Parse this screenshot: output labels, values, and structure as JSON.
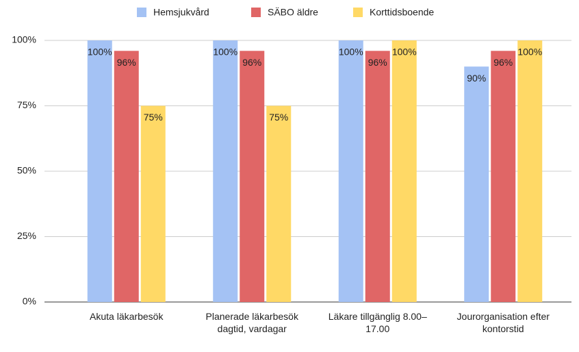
{
  "chart_data": {
    "type": "bar",
    "categories": [
      "Akuta läkarbesök",
      "Planerade läkarbesök dagtid, vardagar",
      "Läkare tillgänglig 8.00–17.00",
      "Jourorganisation efter kontorstid"
    ],
    "series": [
      {
        "name": "Hemsjukvård",
        "color": "#a4c2f4",
        "values": [
          100,
          100,
          100,
          90
        ],
        "value_labels": [
          "100%",
          "100%",
          "100%",
          "90%"
        ]
      },
      {
        "name": "SÄBO äldre",
        "color": "#e06666",
        "values": [
          96,
          96,
          96,
          96
        ],
        "value_labels": [
          "96%",
          "96%",
          "96%",
          "96%"
        ]
      },
      {
        "name": "Korttidsboende",
        "color": "#ffd966",
        "values": [
          75,
          75,
          100,
          100
        ],
        "value_labels": [
          "75%",
          "75%",
          "100%",
          "100%"
        ]
      }
    ],
    "ylim": [
      0,
      100
    ],
    "yticks": [
      {
        "value": 0,
        "label": "0%"
      },
      {
        "value": 25,
        "label": "25%"
      },
      {
        "value": 50,
        "label": "50%"
      },
      {
        "value": 75,
        "label": "75%"
      },
      {
        "value": 100,
        "label": "100%"
      }
    ],
    "grid": true,
    "legend": "top"
  }
}
